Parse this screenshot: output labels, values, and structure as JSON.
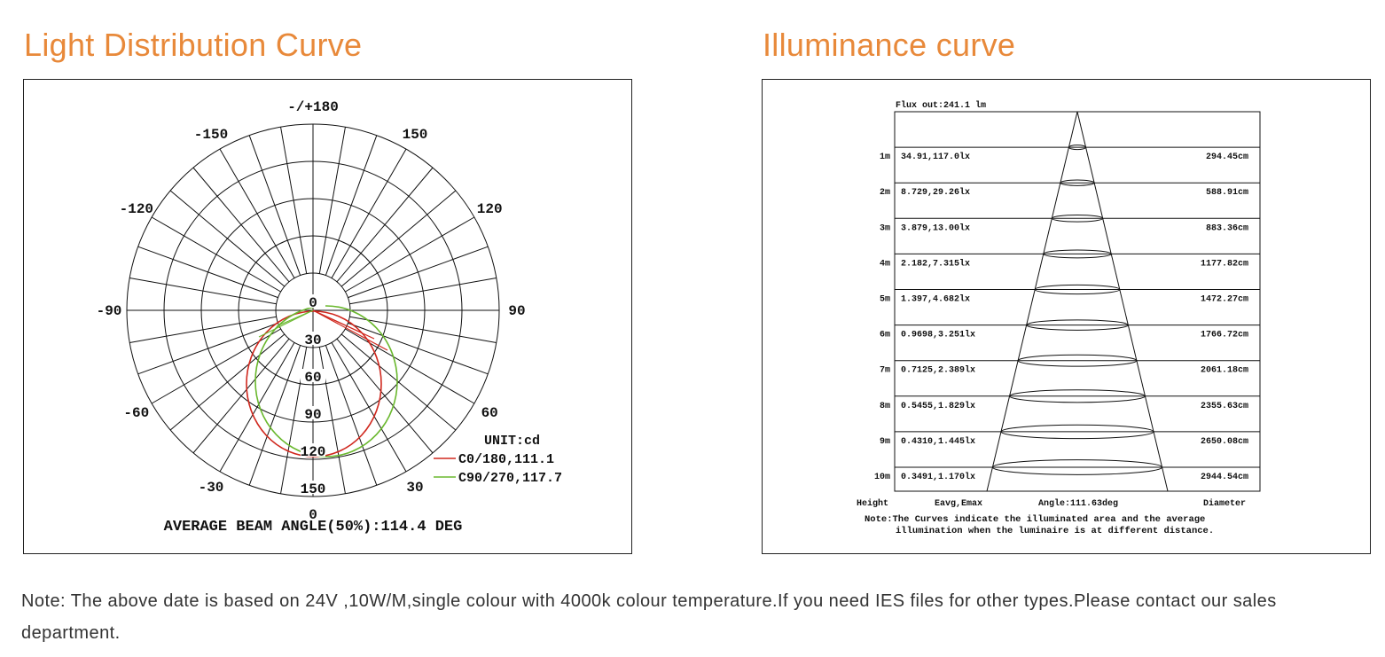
{
  "left": {
    "heading": "Light Distribution Curve",
    "angle_labels": [
      "-/+180",
      "150",
      "120",
      "90",
      "60",
      "30",
      "0",
      "-30",
      "-60",
      "-90",
      "-120",
      "-150"
    ],
    "radial_labels": [
      "0",
      "30",
      "60",
      "90",
      "120",
      "150"
    ],
    "unit": "UNIT:cd",
    "legend": [
      {
        "label": "C0/180,111.1",
        "color": "#d0281e"
      },
      {
        "label": "C90/270,117.7",
        "color": "#6ab82e"
      }
    ],
    "beam_angle": "AVERAGE BEAM ANGLE(50%):114.4 DEG"
  },
  "right": {
    "heading": "Illuminance curve",
    "flux": "Flux out:241.1 lm",
    "rows": [
      [
        "1m",
        "34.91,117.0lx",
        "294.45cm"
      ],
      [
        "2m",
        "8.729,29.26lx",
        "588.91cm"
      ],
      [
        "3m",
        "3.879,13.00lx",
        "883.36cm"
      ],
      [
        "4m",
        "2.182,7.315lx",
        "1177.82cm"
      ],
      [
        "5m",
        "1.397,4.682lx",
        "1472.27cm"
      ],
      [
        "6m",
        "0.9698,3.251lx",
        "1766.72cm"
      ],
      [
        "7m",
        "0.7125,2.389lx",
        "2061.18cm"
      ],
      [
        "8m",
        "0.5455,1.829lx",
        "2355.63cm"
      ],
      [
        "9m",
        "0.4310,1.445lx",
        "2650.08cm"
      ],
      [
        "10m",
        "0.3491,1.170lx",
        "2944.54cm"
      ]
    ],
    "footer": [
      "Height",
      "Eavg,Emax",
      "Angle:111.63deg",
      "Diameter"
    ],
    "note": [
      "Note:The Curves indicate the illuminated area and the average",
      "illumination when the luminaire is at different distance."
    ]
  },
  "note": "Note: The above date is based on 24V ,10W/M,single colour with 4000k colour temperature.If you need IES files for other types.Please contact our sales department."
}
